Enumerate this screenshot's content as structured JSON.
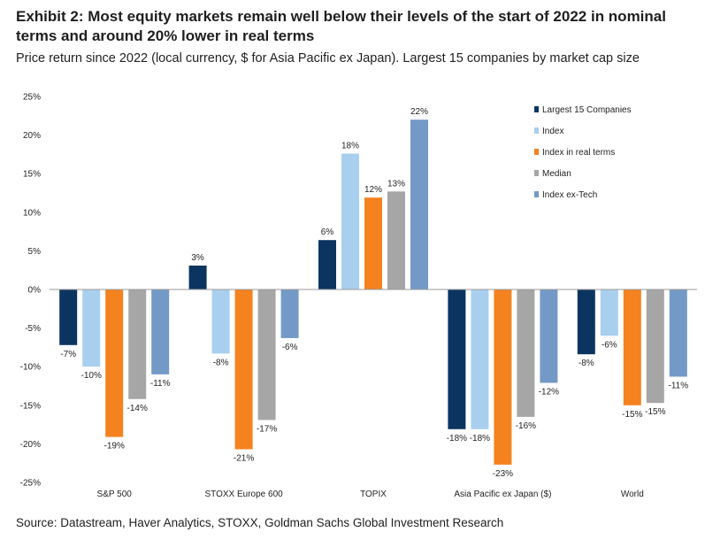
{
  "header": {
    "title": "Exhibit 2: Most equity markets remain well below their levels of the start of 2022 in nominal terms and around 20% lower in real terms",
    "subtitle": "Price return since 2022 (local currency, $ for Asia Pacific ex Japan). Largest 15 companies by market cap size",
    "source": "Source: Datastream, Haver Analytics, STOXX, Goldman Sachs Global Investment Research"
  },
  "chart_data": {
    "type": "bar",
    "categories": [
      "S&P 500",
      "STOXX Europe 600",
      "TOPIX",
      "Asia Pacific ex Japan ($)",
      "World"
    ],
    "ylim": [
      -25,
      25
    ],
    "yticks": [
      25,
      20,
      15,
      10,
      5,
      0,
      -5,
      -10,
      -15,
      -20,
      -25
    ],
    "ytick_labels": [
      "25%",
      "20%",
      "15%",
      "10%",
      "5%",
      "0%",
      "-5%",
      "-10%",
      "-15%",
      "-20%",
      "-25%"
    ],
    "legend_position": "top-right",
    "grid": false,
    "series": [
      {
        "name": "Largest 15 Companies",
        "color": "#0b3560",
        "values": [
          -7.2,
          3.1,
          6.4,
          -18.1,
          -8.4
        ],
        "labels": [
          "-7%",
          "3%",
          "6%",
          "-18%",
          "-8%"
        ]
      },
      {
        "name": "Index",
        "color": "#a9cfee",
        "values": [
          -10.0,
          -8.3,
          17.6,
          -18.1,
          -6.0
        ],
        "labels": [
          "-10%",
          "-8%",
          "18%",
          "-18%",
          "-6%"
        ]
      },
      {
        "name": "Index in real terms",
        "color": "#f4821f",
        "values": [
          -19.1,
          -20.7,
          11.9,
          -22.7,
          -15.0
        ],
        "labels": [
          "-19%",
          "-21%",
          "12%",
          "-23%",
          "-15%"
        ]
      },
      {
        "name": "Median",
        "color": "#a6a6a6",
        "values": [
          -14.2,
          -16.9,
          12.7,
          -16.5,
          -14.7
        ],
        "labels": [
          "-14%",
          "-17%",
          "13%",
          "-16%",
          "-15%"
        ]
      },
      {
        "name": "Index ex-Tech",
        "color": "#7399c6",
        "values": [
          -11.0,
          -6.3,
          22.0,
          -12.1,
          -11.3
        ],
        "labels": [
          "-11%",
          "-6%",
          "22%",
          "-12%",
          "-11%"
        ]
      }
    ]
  }
}
